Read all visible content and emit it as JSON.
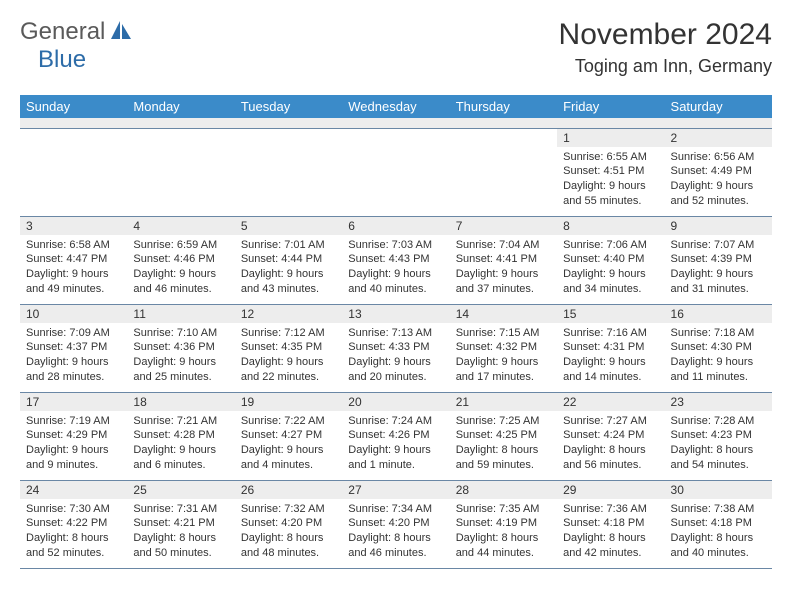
{
  "logo": {
    "text_gray": "General",
    "text_blue": "Blue"
  },
  "header": {
    "month_title": "November 2024",
    "location": "Toging am Inn, Germany"
  },
  "day_headers": [
    "Sunday",
    "Monday",
    "Tuesday",
    "Wednesday",
    "Thursday",
    "Friday",
    "Saturday"
  ],
  "colors": {
    "header_bar": "#3b8bc9",
    "daynum_bg": "#ededed",
    "rule": "#6a87a5",
    "logo_gray": "#5a5a5a",
    "logo_blue": "#2d6ca8",
    "text": "#333333"
  },
  "weeks": [
    [
      {
        "day": "",
        "sunrise": "",
        "sunset": "",
        "daylight": "",
        "empty": true
      },
      {
        "day": "",
        "sunrise": "",
        "sunset": "",
        "daylight": "",
        "empty": true
      },
      {
        "day": "",
        "sunrise": "",
        "sunset": "",
        "daylight": "",
        "empty": true
      },
      {
        "day": "",
        "sunrise": "",
        "sunset": "",
        "daylight": "",
        "empty": true
      },
      {
        "day": "",
        "sunrise": "",
        "sunset": "",
        "daylight": "",
        "empty": true
      },
      {
        "day": "1",
        "sunrise": "Sunrise: 6:55 AM",
        "sunset": "Sunset: 4:51 PM",
        "daylight": "Daylight: 9 hours and 55 minutes."
      },
      {
        "day": "2",
        "sunrise": "Sunrise: 6:56 AM",
        "sunset": "Sunset: 4:49 PM",
        "daylight": "Daylight: 9 hours and 52 minutes."
      }
    ],
    [
      {
        "day": "3",
        "sunrise": "Sunrise: 6:58 AM",
        "sunset": "Sunset: 4:47 PM",
        "daylight": "Daylight: 9 hours and 49 minutes."
      },
      {
        "day": "4",
        "sunrise": "Sunrise: 6:59 AM",
        "sunset": "Sunset: 4:46 PM",
        "daylight": "Daylight: 9 hours and 46 minutes."
      },
      {
        "day": "5",
        "sunrise": "Sunrise: 7:01 AM",
        "sunset": "Sunset: 4:44 PM",
        "daylight": "Daylight: 9 hours and 43 minutes."
      },
      {
        "day": "6",
        "sunrise": "Sunrise: 7:03 AM",
        "sunset": "Sunset: 4:43 PM",
        "daylight": "Daylight: 9 hours and 40 minutes."
      },
      {
        "day": "7",
        "sunrise": "Sunrise: 7:04 AM",
        "sunset": "Sunset: 4:41 PM",
        "daylight": "Daylight: 9 hours and 37 minutes."
      },
      {
        "day": "8",
        "sunrise": "Sunrise: 7:06 AM",
        "sunset": "Sunset: 4:40 PM",
        "daylight": "Daylight: 9 hours and 34 minutes."
      },
      {
        "day": "9",
        "sunrise": "Sunrise: 7:07 AM",
        "sunset": "Sunset: 4:39 PM",
        "daylight": "Daylight: 9 hours and 31 minutes."
      }
    ],
    [
      {
        "day": "10",
        "sunrise": "Sunrise: 7:09 AM",
        "sunset": "Sunset: 4:37 PM",
        "daylight": "Daylight: 9 hours and 28 minutes."
      },
      {
        "day": "11",
        "sunrise": "Sunrise: 7:10 AM",
        "sunset": "Sunset: 4:36 PM",
        "daylight": "Daylight: 9 hours and 25 minutes."
      },
      {
        "day": "12",
        "sunrise": "Sunrise: 7:12 AM",
        "sunset": "Sunset: 4:35 PM",
        "daylight": "Daylight: 9 hours and 22 minutes."
      },
      {
        "day": "13",
        "sunrise": "Sunrise: 7:13 AM",
        "sunset": "Sunset: 4:33 PM",
        "daylight": "Daylight: 9 hours and 20 minutes."
      },
      {
        "day": "14",
        "sunrise": "Sunrise: 7:15 AM",
        "sunset": "Sunset: 4:32 PM",
        "daylight": "Daylight: 9 hours and 17 minutes."
      },
      {
        "day": "15",
        "sunrise": "Sunrise: 7:16 AM",
        "sunset": "Sunset: 4:31 PM",
        "daylight": "Daylight: 9 hours and 14 minutes."
      },
      {
        "day": "16",
        "sunrise": "Sunrise: 7:18 AM",
        "sunset": "Sunset: 4:30 PM",
        "daylight": "Daylight: 9 hours and 11 minutes."
      }
    ],
    [
      {
        "day": "17",
        "sunrise": "Sunrise: 7:19 AM",
        "sunset": "Sunset: 4:29 PM",
        "daylight": "Daylight: 9 hours and 9 minutes."
      },
      {
        "day": "18",
        "sunrise": "Sunrise: 7:21 AM",
        "sunset": "Sunset: 4:28 PM",
        "daylight": "Daylight: 9 hours and 6 minutes."
      },
      {
        "day": "19",
        "sunrise": "Sunrise: 7:22 AM",
        "sunset": "Sunset: 4:27 PM",
        "daylight": "Daylight: 9 hours and 4 minutes."
      },
      {
        "day": "20",
        "sunrise": "Sunrise: 7:24 AM",
        "sunset": "Sunset: 4:26 PM",
        "daylight": "Daylight: 9 hours and 1 minute."
      },
      {
        "day": "21",
        "sunrise": "Sunrise: 7:25 AM",
        "sunset": "Sunset: 4:25 PM",
        "daylight": "Daylight: 8 hours and 59 minutes."
      },
      {
        "day": "22",
        "sunrise": "Sunrise: 7:27 AM",
        "sunset": "Sunset: 4:24 PM",
        "daylight": "Daylight: 8 hours and 56 minutes."
      },
      {
        "day": "23",
        "sunrise": "Sunrise: 7:28 AM",
        "sunset": "Sunset: 4:23 PM",
        "daylight": "Daylight: 8 hours and 54 minutes."
      }
    ],
    [
      {
        "day": "24",
        "sunrise": "Sunrise: 7:30 AM",
        "sunset": "Sunset: 4:22 PM",
        "daylight": "Daylight: 8 hours and 52 minutes."
      },
      {
        "day": "25",
        "sunrise": "Sunrise: 7:31 AM",
        "sunset": "Sunset: 4:21 PM",
        "daylight": "Daylight: 8 hours and 50 minutes."
      },
      {
        "day": "26",
        "sunrise": "Sunrise: 7:32 AM",
        "sunset": "Sunset: 4:20 PM",
        "daylight": "Daylight: 8 hours and 48 minutes."
      },
      {
        "day": "27",
        "sunrise": "Sunrise: 7:34 AM",
        "sunset": "Sunset: 4:20 PM",
        "daylight": "Daylight: 8 hours and 46 minutes."
      },
      {
        "day": "28",
        "sunrise": "Sunrise: 7:35 AM",
        "sunset": "Sunset: 4:19 PM",
        "daylight": "Daylight: 8 hours and 44 minutes."
      },
      {
        "day": "29",
        "sunrise": "Sunrise: 7:36 AM",
        "sunset": "Sunset: 4:18 PM",
        "daylight": "Daylight: 8 hours and 42 minutes."
      },
      {
        "day": "30",
        "sunrise": "Sunrise: 7:38 AM",
        "sunset": "Sunset: 4:18 PM",
        "daylight": "Daylight: 8 hours and 40 minutes."
      }
    ]
  ]
}
